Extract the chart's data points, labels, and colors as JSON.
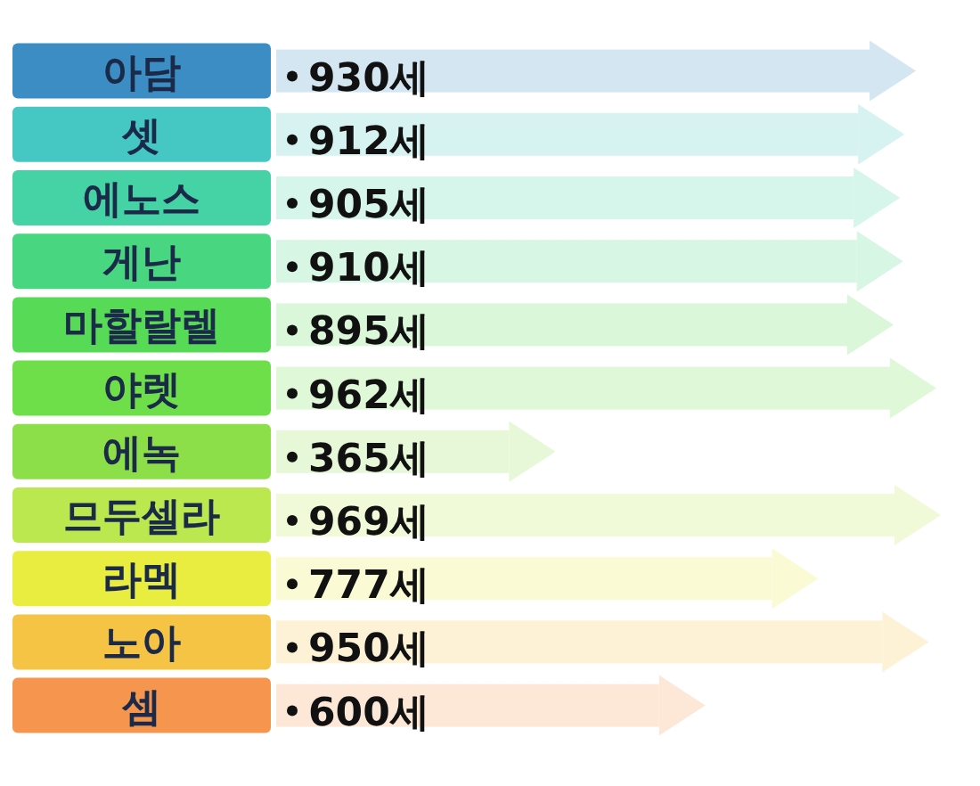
{
  "chart_data": {
    "type": "bar",
    "orientation": "horizontal",
    "categories": [
      "아담",
      "셋",
      "에노스",
      "게난",
      "마할랄렐",
      "야렛",
      "에녹",
      "므두셀라",
      "라멕",
      "노아",
      "셈"
    ],
    "values": [
      930,
      912,
      905,
      910,
      895,
      962,
      365,
      969,
      777,
      950,
      600
    ],
    "value_labels": [
      "930세",
      "912세",
      "905세",
      "910세",
      "895세",
      "962세",
      "365세",
      "969세",
      "777세",
      "950세",
      "600세"
    ],
    "colors": [
      "#d4e6f2",
      "#d6f3f2",
      "#d6f5eb",
      "#d7f6e3",
      "#daf7da",
      "#dff8d7",
      "#e6f8d7",
      "#f0fad8",
      "#fafbd5",
      "#fdf2d6",
      "#fde8d8"
    ]
  }
}
